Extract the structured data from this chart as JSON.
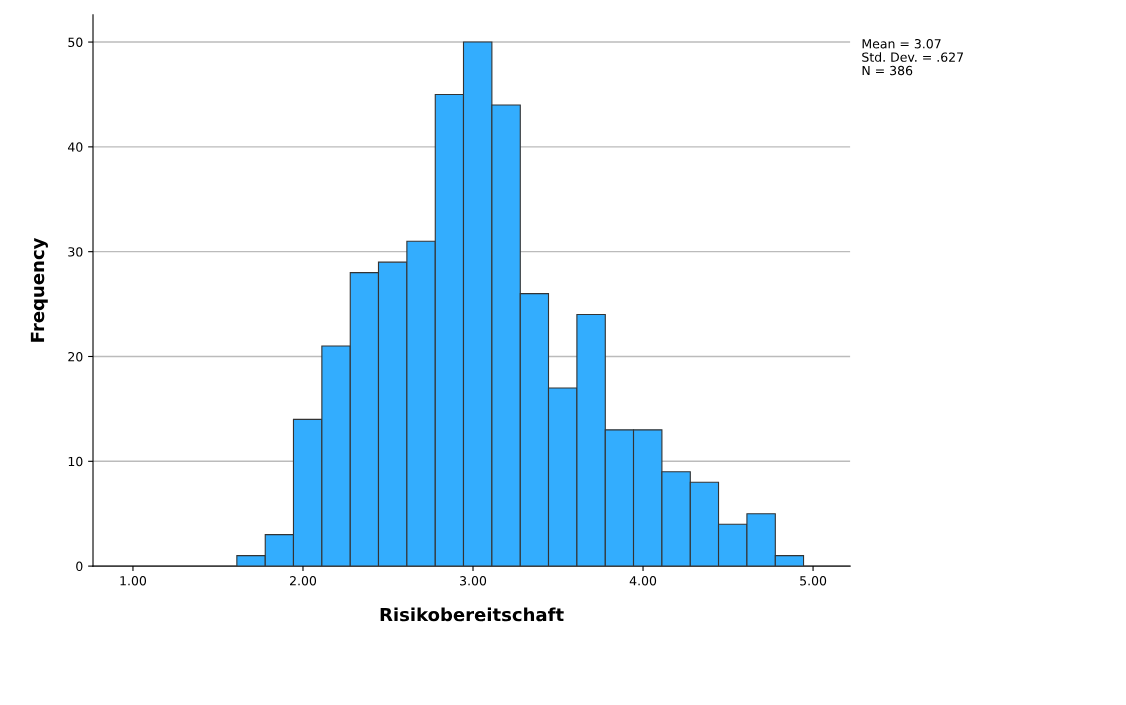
{
  "chart_data": {
    "type": "histogram",
    "xlabel": "Risikobereitschaft",
    "ylabel": "Frequency",
    "bins": [
      1.611,
      1.778,
      1.944,
      2.111,
      2.278,
      2.444,
      2.611,
      2.778,
      2.944,
      3.111,
      3.278,
      3.444,
      3.611,
      3.778,
      3.944,
      4.111,
      4.278,
      4.444,
      4.611,
      4.778,
      4.944
    ],
    "values": [
      1,
      3,
      14,
      21,
      28,
      29,
      31,
      45,
      50,
      44,
      26,
      17,
      24,
      13,
      13,
      9,
      8,
      4,
      5,
      1
    ],
    "color": "#33adfe",
    "xlim": [
      0.765,
      5.218
    ],
    "xticks": [
      {
        "value": 1,
        "label": "1.00"
      },
      {
        "value": 2,
        "label": "2.00"
      },
      {
        "value": 3,
        "label": "3.00"
      },
      {
        "value": 4,
        "label": "4.00"
      },
      {
        "value": 5,
        "label": "5.00"
      }
    ],
    "ylim": [
      0,
      52.6
    ],
    "yticks": [
      0,
      10,
      20,
      30,
      40,
      50
    ],
    "grid": "y",
    "annotations": [
      "Mean = 3.07",
      "Std. Dev. = .627",
      "N = 386"
    ]
  }
}
